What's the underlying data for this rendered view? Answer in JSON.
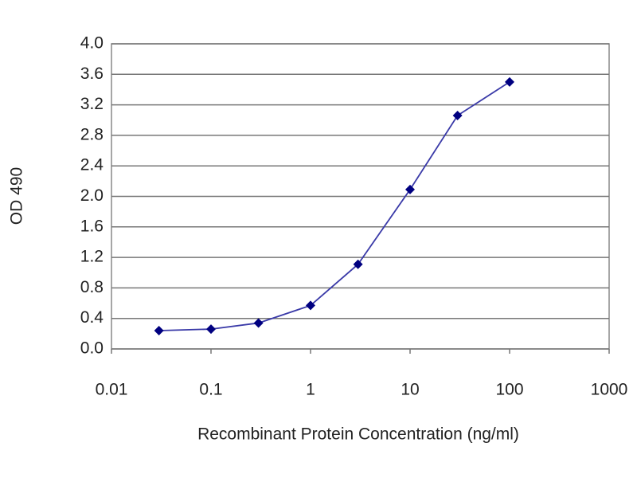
{
  "chart_data": {
    "type": "line",
    "x_label": "Recombinant Protein Concentration (ng/ml)",
    "y_label": "OD 490",
    "xscale": "log",
    "x": [
      0.03,
      0.1,
      0.3,
      1,
      3,
      10,
      30,
      100
    ],
    "series": [
      {
        "name": "OD 490",
        "color": "#3a3aa8",
        "marker_color": "#000080",
        "values": [
          0.24,
          0.26,
          0.34,
          0.57,
          1.11,
          2.09,
          3.06,
          3.5
        ]
      }
    ],
    "xlim": [
      0.01,
      1000
    ],
    "xticks": [
      0.01,
      0.1,
      1,
      10,
      100,
      1000
    ],
    "ylim": [
      0,
      4
    ],
    "yticks": [
      {
        "value": 0,
        "label": "0.0"
      },
      0.4,
      0.8,
      1.2,
      1.6,
      {
        "value": 2,
        "label": "2.0"
      },
      2.4,
      2.8,
      3.2,
      3.6,
      {
        "value": 4,
        "label": "4.0"
      }
    ],
    "grid": true
  }
}
